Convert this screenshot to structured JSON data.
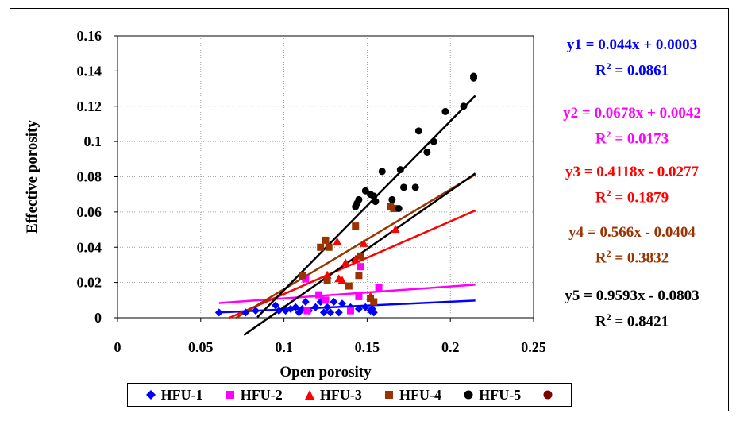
{
  "chart_data": {
    "type": "scatter",
    "xlabel": "Open porosity",
    "ylabel": "Effective porosity",
    "xlim": [
      0,
      0.25
    ],
    "ylim": [
      0,
      0.16
    ],
    "x_ticks": [
      "0",
      "0.05",
      "0.1",
      "0.15",
      "0.2",
      "0.25"
    ],
    "y_ticks": [
      "0",
      "0.02",
      "0.04",
      "0.06",
      "0.08",
      "0.1",
      "0.12",
      "0.14",
      "0.16"
    ],
    "grid": true,
    "legend_position": "bottom",
    "series": [
      {
        "name": "HFU-1",
        "color": "#0000ff",
        "marker": "diamond",
        "points": [
          [
            0.061,
            0.003
          ],
          [
            0.077,
            0.003
          ],
          [
            0.083,
            0.004
          ],
          [
            0.095,
            0.007
          ],
          [
            0.097,
            0.004
          ],
          [
            0.101,
            0.004
          ],
          [
            0.104,
            0.005
          ],
          [
            0.107,
            0.006
          ],
          [
            0.109,
            0.003
          ],
          [
            0.111,
            0.005
          ],
          [
            0.113,
            0.009
          ],
          [
            0.115,
            0.004
          ],
          [
            0.119,
            0.006
          ],
          [
            0.122,
            0.009
          ],
          [
            0.124,
            0.003
          ],
          [
            0.126,
            0.006
          ],
          [
            0.128,
            0.003
          ],
          [
            0.13,
            0.009
          ],
          [
            0.133,
            0.003
          ],
          [
            0.135,
            0.008
          ],
          [
            0.14,
            0.006
          ],
          [
            0.145,
            0.005
          ],
          [
            0.149,
            0.006
          ],
          [
            0.152,
            0.004
          ],
          [
            0.153,
            0.005
          ],
          [
            0.154,
            0.003
          ]
        ],
        "trend": {
          "slope": 0.044,
          "intercept": 0.0003,
          "x_range": [
            0.061,
            0.215
          ]
        },
        "equation": "y1 = 0.044x + 0.0003",
        "r2_value": "= 0.0861"
      },
      {
        "name": "HFU-2",
        "color": "#ff00ff",
        "marker": "square",
        "points": [
          [
            0.113,
            0.022
          ],
          [
            0.114,
            0.004
          ],
          [
            0.121,
            0.013
          ],
          [
            0.125,
            0.01
          ],
          [
            0.14,
            0.004
          ],
          [
            0.145,
            0.012
          ],
          [
            0.146,
            0.029
          ],
          [
            0.157,
            0.017
          ]
        ],
        "trend": {
          "slope": 0.0678,
          "intercept": 0.0042,
          "x_range": [
            0.061,
            0.215
          ]
        },
        "equation": "y2 = 0.0678x + 0.0042",
        "r2_value": "= 0.0173"
      },
      {
        "name": "HFU-3",
        "color": "#ff0000",
        "marker": "triangle",
        "points": [
          [
            0.126,
            0.024
          ],
          [
            0.132,
            0.043
          ],
          [
            0.133,
            0.022
          ],
          [
            0.135,
            0.021
          ],
          [
            0.137,
            0.031
          ],
          [
            0.143,
            0.033
          ],
          [
            0.148,
            0.042
          ],
          [
            0.152,
            0.012
          ],
          [
            0.167,
            0.05
          ]
        ],
        "trend": {
          "slope": 0.4118,
          "intercept": -0.0277,
          "x_range": [
            0.067,
            0.215
          ]
        },
        "equation": "y3 = 0.4118x - 0.0277",
        "r2_value": "= 0.1879"
      },
      {
        "name": "HFU-4",
        "color": "#993300",
        "marker": "square",
        "points": [
          [
            0.111,
            0.024
          ],
          [
            0.122,
            0.04
          ],
          [
            0.125,
            0.044
          ],
          [
            0.126,
            0.021
          ],
          [
            0.127,
            0.04
          ],
          [
            0.139,
            0.018
          ],
          [
            0.143,
            0.052
          ],
          [
            0.145,
            0.024
          ],
          [
            0.146,
            0.035
          ],
          [
            0.152,
            0.011
          ],
          [
            0.154,
            0.009
          ],
          [
            0.164,
            0.063
          ],
          [
            0.166,
            0.062
          ]
        ],
        "trend": {
          "slope": 0.566,
          "intercept": -0.0404,
          "x_range": [
            0.071,
            0.215
          ]
        },
        "equation": "y4 = 0.566x - 0.0404",
        "r2_value": "= 0.3832"
      },
      {
        "name": "HFU-5",
        "color": "#000000",
        "marker": "circle",
        "points": [
          [
            0.143,
            0.063
          ],
          [
            0.144,
            0.065
          ],
          [
            0.145,
            0.067
          ],
          [
            0.149,
            0.072
          ],
          [
            0.152,
            0.07
          ],
          [
            0.154,
            0.069
          ],
          [
            0.155,
            0.066
          ],
          [
            0.159,
            0.083
          ],
          [
            0.165,
            0.067
          ],
          [
            0.169,
            0.062
          ],
          [
            0.17,
            0.084
          ],
          [
            0.172,
            0.074
          ],
          [
            0.179,
            0.074
          ],
          [
            0.181,
            0.106
          ],
          [
            0.186,
            0.094
          ],
          [
            0.19,
            0.1
          ],
          [
            0.197,
            0.117
          ],
          [
            0.208,
            0.12
          ],
          [
            0.214,
            0.136
          ],
          [
            0.214,
            0.137
          ]
        ],
        "trend": {
          "slope": 0.9593,
          "intercept": -0.0803,
          "x_range": [
            0.084,
            0.215
          ]
        },
        "equation": "y5 = 0.9593x - 0.0803",
        "r2_value": "= 0.8421"
      },
      {
        "name": "",
        "color": "#800000",
        "marker": "circle",
        "points": []
      }
    ],
    "extra_trend": {
      "color": "#000000",
      "slope": 0.66,
      "intercept": -0.06,
      "x_range": [
        0.076,
        0.215
      ]
    }
  },
  "r2_label": "R",
  "r2_sup": "2"
}
